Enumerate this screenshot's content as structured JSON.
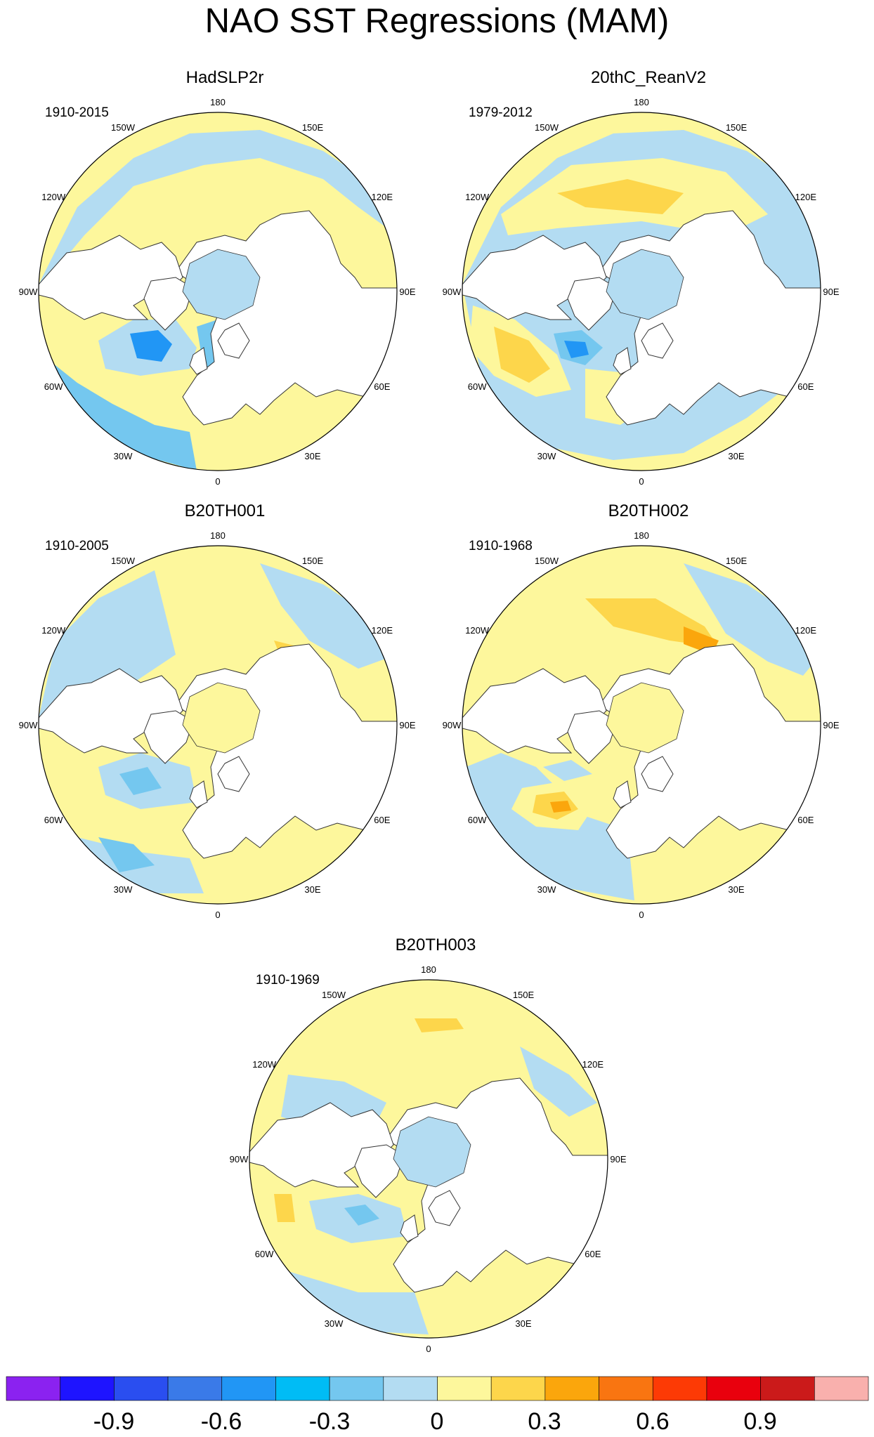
{
  "title": "NAO SST Regressions (MAM)",
  "panels": [
    {
      "name": "HadSLP2r",
      "period": "1910-2015"
    },
    {
      "name": "20thC_ReanV2",
      "period": "1979-2012"
    },
    {
      "name": "B20TH001",
      "period": "1910-2005"
    },
    {
      "name": "B20TH002",
      "period": "1910-1968"
    },
    {
      "name": "B20TH003",
      "period": "1910-1969"
    }
  ],
  "longitude_labels": [
    "180",
    "150E",
    "120E",
    "90E",
    "60E",
    "30E",
    "0",
    "30W",
    "60W",
    "90W",
    "120W",
    "150W"
  ],
  "colorbar": {
    "colors": [
      "#8b22f0",
      "#1e14ff",
      "#2a4ef0",
      "#3a7ae8",
      "#2196f5",
      "#00bcf5",
      "#74c7ef",
      "#b3dcf2",
      "#fdf79c",
      "#fdd64b",
      "#fba60c",
      "#f97511",
      "#fd3a05",
      "#e9000d",
      "#cb1a1a",
      "#f9b0ad"
    ],
    "tick_labels": [
      "-0.9",
      "-0.6",
      "-0.3",
      "0",
      "0.3",
      "0.6",
      "0.9"
    ]
  },
  "fill_colors": {
    "ocean_pos": "#fdf79c",
    "ocean_neg": "#b3dcf2",
    "neg_mid": "#74c7ef",
    "neg_strong": "#2196f5",
    "pos_mid": "#fdd64b",
    "pos_strong": "#fba60c",
    "land": "#ffffff",
    "coast": "#333333"
  }
}
